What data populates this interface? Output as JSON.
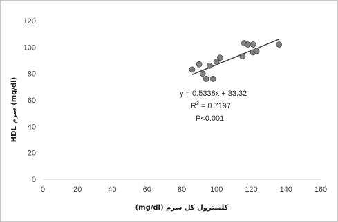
{
  "chart_data": {
    "type": "scatter",
    "title": "",
    "xlabel": "كلسترول كل سرم (mg/dl)",
    "ylabel": "HDL سرم (mg/dl)",
    "xlim": [
      0,
      160
    ],
    "ylim": [
      0,
      120
    ],
    "x_ticks": [
      "0",
      "20",
      "40",
      "60",
      "80",
      "100",
      "120",
      "140",
      "160"
    ],
    "y_ticks": [
      "0",
      "20",
      "40",
      "60",
      "80",
      "100",
      "120"
    ],
    "grid": false,
    "legend": "none",
    "marker_color": "#7f7f7f",
    "trendline_color": "#404040",
    "points": [
      {
        "x": 86,
        "y": 83
      },
      {
        "x": 90,
        "y": 87
      },
      {
        "x": 92,
        "y": 80
      },
      {
        "x": 94,
        "y": 76
      },
      {
        "x": 96,
        "y": 86
      },
      {
        "x": 98,
        "y": 76
      },
      {
        "x": 100,
        "y": 89
      },
      {
        "x": 102,
        "y": 92
      },
      {
        "x": 115,
        "y": 93
      },
      {
        "x": 116,
        "y": 103
      },
      {
        "x": 118,
        "y": 102
      },
      {
        "x": 121,
        "y": 96
      },
      {
        "x": 121,
        "y": 102
      },
      {
        "x": 123,
        "y": 97
      },
      {
        "x": 136,
        "y": 102
      }
    ],
    "trendline": {
      "slope": 0.5338,
      "intercept": 33.32,
      "x_range": [
        86,
        136
      ]
    },
    "annotations": {
      "equation": "y = 0.5338x + 33.32",
      "r_squared_prefix": "R",
      "r_squared_exp": "2",
      "r_squared_value": " = 0.7197",
      "p_value": "P<0.001"
    }
  }
}
